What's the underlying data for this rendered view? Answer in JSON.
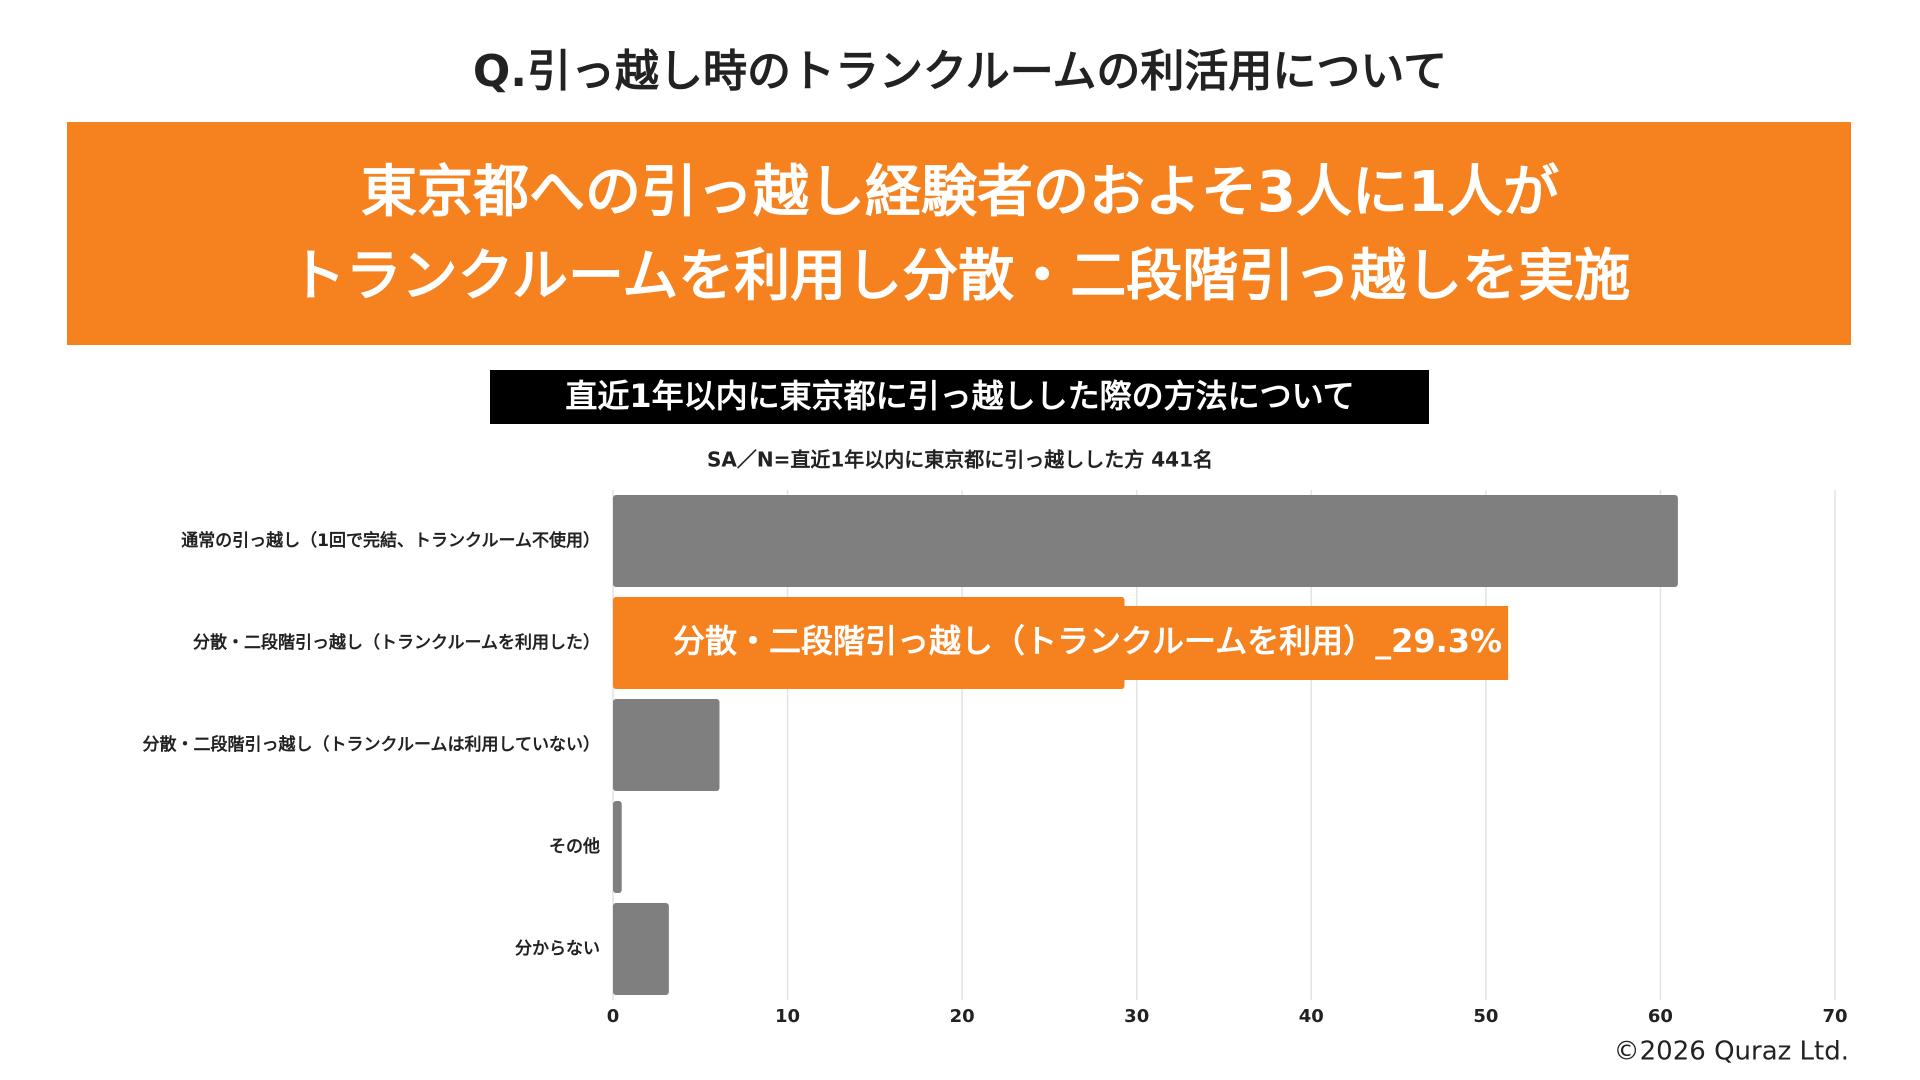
{
  "chart_data": {
    "type": "bar",
    "orientation": "horizontal",
    "question": "Q.引っ越し時のトランクルームの利活用について",
    "headline": [
      "東京都への引っ越し経験者のおよそ3人に1人が",
      "トランクルームを利用し分散・二段階引っ越しを実施"
    ],
    "title": "直近1年以内に東京都に引っ越しした際の方法について",
    "subtitle": "SA／N=直近1年以内に東京都に引っ越しした方 441名",
    "categories": [
      "通常の引っ越し（1回で完結、トランクルーム不使用）",
      "分散・二段階引っ越し（トランクルームを利用した）",
      "分散・二段階引っ越し（トランクルームは利用していない）",
      "その他",
      "分からない"
    ],
    "values": [
      61,
      29.3,
      6.1,
      0.5,
      3.2
    ],
    "colors": [
      "#7f7f7f",
      "#f5821f",
      "#7f7f7f",
      "#7f7f7f",
      "#7f7f7f"
    ],
    "annotation": "分散・二段階引っ越し（トランクルームを利用）_29.3%",
    "xlim": [
      0,
      70
    ],
    "xticks": [
      0,
      10,
      20,
      30,
      40,
      50,
      60,
      70
    ],
    "grid": true,
    "copyright": "©2026 Quraz Ltd."
  }
}
